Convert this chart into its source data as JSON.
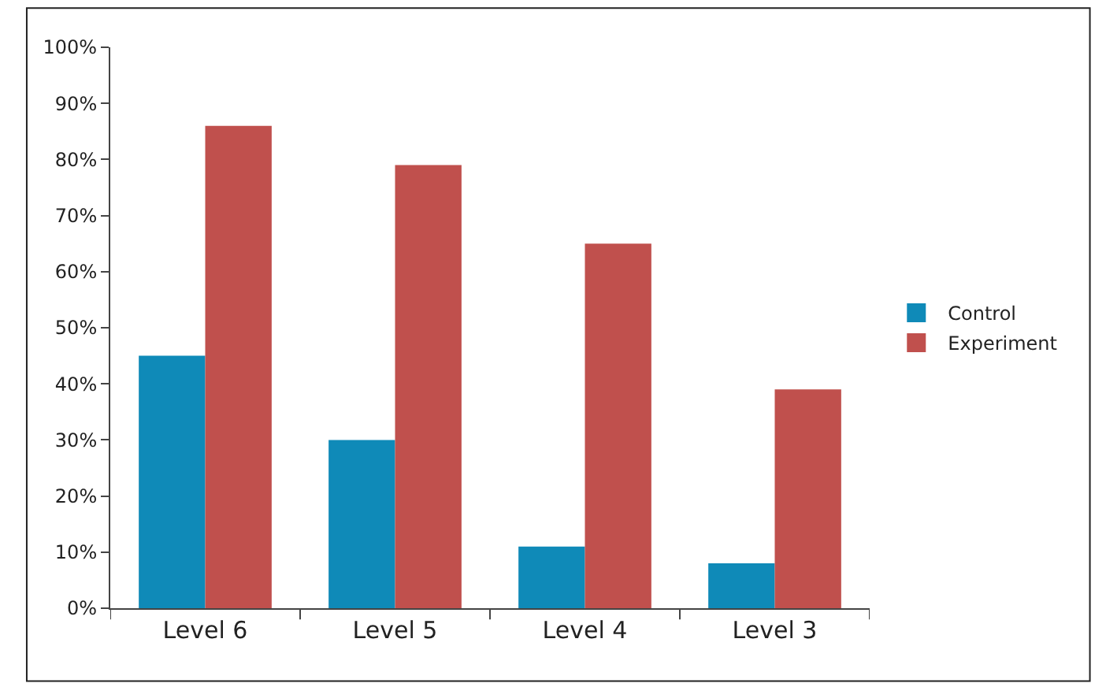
{
  "chart_data": {
    "type": "bar",
    "categories": [
      "Level 6",
      "Level 5",
      "Level 4",
      "Level 3"
    ],
    "series": [
      {
        "name": "Control",
        "color": "#0f8ab8",
        "values": [
          45,
          30,
          11,
          8
        ]
      },
      {
        "name": "Experiment",
        "color": "#c0504d",
        "values": [
          86,
          79,
          65,
          39
        ]
      }
    ],
    "ylim": [
      0,
      100
    ],
    "yticks": [
      {
        "value": 0,
        "label": "0%"
      },
      {
        "value": 10,
        "label": "10%"
      },
      {
        "value": 20,
        "label": "20%"
      },
      {
        "value": 30,
        "label": "30%"
      },
      {
        "value": 40,
        "label": "40%"
      },
      {
        "value": 50,
        "label": "50%"
      },
      {
        "value": 60,
        "label": "60%"
      },
      {
        "value": 70,
        "label": "70%"
      },
      {
        "value": 80,
        "label": "80%"
      },
      {
        "value": 90,
        "label": "90%"
      },
      {
        "value": 100,
        "label": "100%"
      }
    ],
    "legend": "right"
  }
}
